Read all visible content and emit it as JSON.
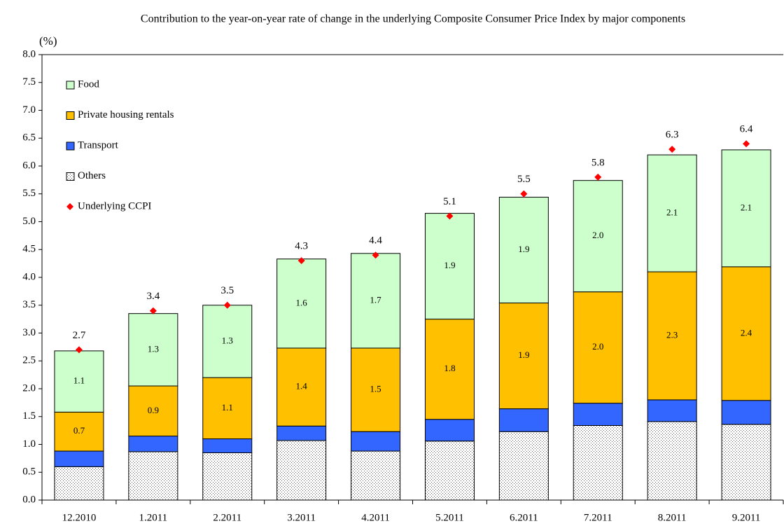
{
  "chart_data": {
    "type": "stacked_bar",
    "subtitle": "Contribution to the year-on-year rate of change in the underlying Composite Consumer Price Index by major components",
    "y_label": "(%)",
    "categories": [
      "12.2010",
      "1.2011",
      "2.2011",
      "3.2011",
      "4.2011",
      "5.2011",
      "6.2011",
      "7.2011",
      "8.2011",
      "9.2011"
    ],
    "series": [
      {
        "name": "Others",
        "color": "#ffffff",
        "pattern": "dots",
        "values": [
          0.6,
          0.87,
          0.85,
          1.07,
          0.88,
          1.06,
          1.23,
          1.34,
          1.41,
          1.36
        ]
      },
      {
        "name": "Transport",
        "color": "#3366ff",
        "values": [
          0.28,
          0.28,
          0.25,
          0.26,
          0.35,
          0.39,
          0.41,
          0.4,
          0.39,
          0.43
        ]
      },
      {
        "name": "Private housing rentals",
        "color": "#ffc000",
        "values": [
          0.7,
          0.9,
          1.1,
          1.4,
          1.5,
          1.8,
          1.9,
          2.0,
          2.3,
          2.4
        ],
        "value_labels": [
          "0.7",
          "0.9",
          "1.1",
          "1.4",
          "1.5",
          "1.8",
          "1.9",
          "2.0",
          "2.3",
          "2.4"
        ]
      },
      {
        "name": "Food",
        "color": "#ccffcc",
        "values": [
          1.1,
          1.3,
          1.3,
          1.6,
          1.7,
          1.9,
          1.9,
          2.0,
          2.1,
          2.1
        ],
        "value_labels": [
          "1.1",
          "1.3",
          "1.3",
          "1.6",
          "1.7",
          "1.9",
          "1.9",
          "2.0",
          "2.1",
          "2.1"
        ]
      }
    ],
    "line_series": {
      "name": "Underlying CCPI",
      "color": "#ff0000",
      "marker": "diamond",
      "values": [
        2.7,
        3.4,
        3.5,
        4.3,
        4.4,
        5.1,
        5.5,
        5.8,
        6.3,
        6.4
      ]
    },
    "ylim": [
      0,
      8
    ],
    "yticks": [
      {
        "value": 0,
        "label": "0.0"
      },
      0.5,
      {
        "value": 1,
        "label": "1.0"
      },
      1.5,
      {
        "value": 2,
        "label": "2.0"
      },
      2.5,
      {
        "value": 3,
        "label": "3.0"
      },
      3.5,
      {
        "value": 4,
        "label": "4.0"
      },
      4.5,
      {
        "value": 5,
        "label": "5.0"
      },
      5.5,
      {
        "value": 6,
        "label": "6.0"
      },
      6.5,
      {
        "value": 7,
        "label": "7.0"
      },
      7.5,
      {
        "value": 8,
        "label": "8.0"
      }
    ],
    "legend": "upper left"
  }
}
